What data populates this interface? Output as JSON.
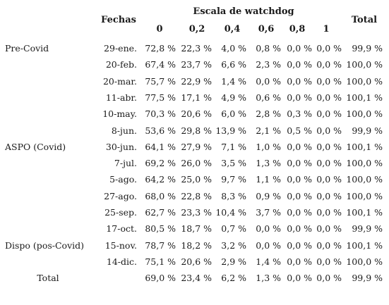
{
  "table": {
    "title": "Escala de watchdog",
    "fechas_header": "Fechas",
    "total_header": "Total",
    "scale_columns": [
      "0",
      "0,2",
      "0,4",
      "0,6",
      "0,8",
      "1"
    ],
    "rows": [
      {
        "group": "Pre-Covid",
        "fecha": "29-ene.",
        "values": [
          "72,8 %",
          "22,3 %",
          "4,0 %",
          "0,8 %",
          "0,0 %",
          "0,0 %"
        ],
        "total": "99,9 %"
      },
      {
        "group": "",
        "fecha": "20-feb.",
        "values": [
          "67,4 %",
          "23,7 %",
          "6,6 %",
          "2,3 %",
          "0,0 %",
          "0,0 %"
        ],
        "total": "100,0 %"
      },
      {
        "group": "",
        "fecha": "20-mar.",
        "values": [
          "75,7 %",
          "22,9 %",
          "1,4 %",
          "0,0 %",
          "0,0 %",
          "0,0 %"
        ],
        "total": "100,0 %"
      },
      {
        "group": "",
        "fecha": "11-abr.",
        "values": [
          "77,5 %",
          "17,1 %",
          "4,9 %",
          "0,6 %",
          "0,0 %",
          "0,0 %"
        ],
        "total": "100,1 %"
      },
      {
        "group": "",
        "fecha": "10-may.",
        "values": [
          "70,3 %",
          "20,6 %",
          "6,0 %",
          "2,8 %",
          "0,3 %",
          "0,0 %"
        ],
        "total": "100,0 %"
      },
      {
        "group": "",
        "fecha": "8-jun.",
        "values": [
          "53,6 %",
          "29,8 %",
          "13,9 %",
          "2,1 %",
          "0,5 %",
          "0,0 %"
        ],
        "total": "99,9 %"
      },
      {
        "group": "ASPO (Covid)",
        "fecha": "30-jun.",
        "values": [
          "64,1 %",
          "27,9 %",
          "7,1 %",
          "1,0 %",
          "0,0 %",
          "0,0 %"
        ],
        "total": "100,1 %"
      },
      {
        "group": "",
        "fecha": "7-jul.",
        "values": [
          "69,2 %",
          "26,0 %",
          "3,5 %",
          "1,3 %",
          "0,0 %",
          "0,0 %"
        ],
        "total": "100,0 %"
      },
      {
        "group": "",
        "fecha": "5-ago.",
        "values": [
          "64,2 %",
          "25,0 %",
          "9,7 %",
          "1,1 %",
          "0,0 %",
          "0,0 %"
        ],
        "total": "100,0 %"
      },
      {
        "group": "",
        "fecha": "27-ago.",
        "values": [
          "68,0 %",
          "22,8 %",
          "8,3 %",
          "0,9 %",
          "0,0 %",
          "0,0 %"
        ],
        "total": "100,0 %"
      },
      {
        "group": "",
        "fecha": "25-sep.",
        "values": [
          "62,7 %",
          "23,3 %",
          "10,4 %",
          "3,7 %",
          "0,0 %",
          "0,0 %"
        ],
        "total": "100,1 %"
      },
      {
        "group": "",
        "fecha": "17-oct.",
        "values": [
          "80,5 %",
          "18,7 %",
          "0,7 %",
          "0,0 %",
          "0,0 %",
          "0,0 %"
        ],
        "total": "99,9 %"
      },
      {
        "group": "Dispo (pos-Covid)",
        "fecha": "15-nov.",
        "values": [
          "78,7 %",
          "18,2 %",
          "3,2 %",
          "0,0 %",
          "0,0 %",
          "0,0 %"
        ],
        "total": "100,1 %"
      },
      {
        "group": "",
        "fecha": "14-dic.",
        "values": [
          "75,1 %",
          "20,6 %",
          "2,9 %",
          "1,4 %",
          "0,0 %",
          "0,0 %"
        ],
        "total": "100,0 %"
      }
    ],
    "total_row": {
      "label": "Total",
      "values": [
        "69,0 %",
        "23,4 %",
        "6,2 %",
        "1,3 %",
        "0,0 %",
        "0,0 %"
      ],
      "total": "99,9 %"
    }
  }
}
